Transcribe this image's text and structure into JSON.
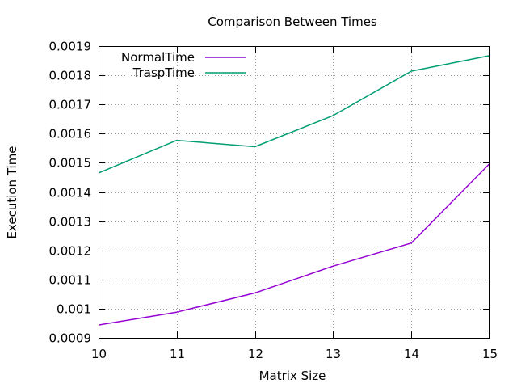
{
  "chart_data": {
    "type": "line",
    "title": "Comparison Between Times",
    "xlabel": "Matrix Size",
    "ylabel": "Execution Time",
    "xlim": [
      10,
      15
    ],
    "ylim": [
      0.0009,
      0.0019
    ],
    "x": [
      10,
      11,
      12,
      13,
      14,
      15
    ],
    "xticks": [
      "10",
      "11",
      "12",
      "13",
      "14",
      "15"
    ],
    "yticks": [
      "0.0009",
      "0.001",
      "0.0011",
      "0.0012",
      "0.0013",
      "0.0014",
      "0.0015",
      "0.0016",
      "0.0017",
      "0.0018",
      "0.0019"
    ],
    "grid": true,
    "legend_position": "top-left",
    "series": [
      {
        "name": "NormalTime",
        "color": "#9400d3",
        "values": [
          0.000944,
          0.000988,
          0.001054,
          0.001146,
          0.001225,
          0.001497
        ]
      },
      {
        "name": "TraspTime",
        "color": "#009e73",
        "values": [
          0.001465,
          0.001577,
          0.001555,
          0.001662,
          0.001814,
          0.001867
        ]
      }
    ]
  }
}
